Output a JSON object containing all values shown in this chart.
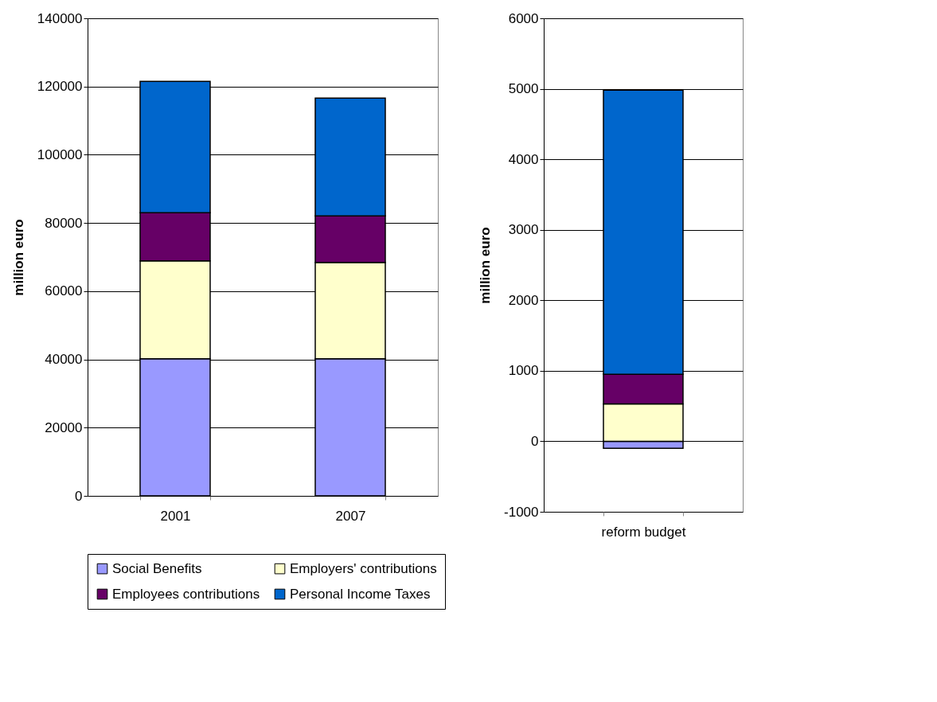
{
  "chart_data": [
    {
      "type": "bar",
      "stacked": true,
      "categories": [
        "2001",
        "2007"
      ],
      "ylabel": "million euro",
      "ylim": [
        0,
        140000
      ],
      "yticks": [
        0,
        20000,
        40000,
        60000,
        80000,
        100000,
        120000,
        140000
      ],
      "grid": "y",
      "legend": "bottom",
      "series": [
        {
          "name": "Social Benefits",
          "color": "#9999ff",
          "values": [
            40200,
            40200
          ]
        },
        {
          "name": "Employers' contributions",
          "color": "#ffffcc",
          "values": [
            28700,
            28200
          ]
        },
        {
          "name": "Employees contributions",
          "color": "#660066",
          "values": [
            14100,
            13700
          ]
        },
        {
          "name": "Personal Income Taxes",
          "color": "#0066cc",
          "values": [
            38500,
            34500
          ]
        }
      ]
    },
    {
      "type": "bar",
      "stacked": true,
      "categories": [
        "reform budget"
      ],
      "ylabel": "million euro",
      "ylim": [
        -1000,
        6000
      ],
      "yticks": [
        -1000,
        0,
        1000,
        2000,
        3000,
        4000,
        5000,
        6000
      ],
      "grid": "y",
      "series": [
        {
          "color": "#9999ff",
          "values": [
            -100
          ]
        },
        {
          "color": "#ffffcc",
          "values": [
            530
          ]
        },
        {
          "color": "#660066",
          "values": [
            420
          ]
        },
        {
          "color": "#0066cc",
          "values": [
            4030
          ]
        }
      ]
    }
  ]
}
